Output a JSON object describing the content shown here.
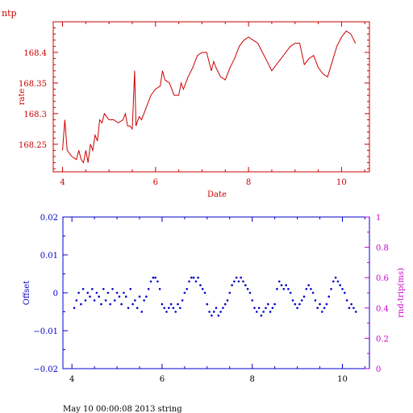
{
  "footer_text": "May 10 00:00:08 2013 string",
  "colors": {
    "top": "#cc0000",
    "blue": "#0000cc",
    "magenta": "#cc00cc",
    "black": "#000000"
  },
  "chart_data": [
    {
      "type": "line",
      "title": "ntp",
      "xlabel": "Date",
      "ylabel": "rate",
      "xlim": [
        3.8,
        10.6
      ],
      "ylim": [
        168.205,
        168.45
      ],
      "xticks": [
        4,
        6,
        8,
        10
      ],
      "yticks": [
        168.25,
        168.3,
        168.35,
        168.4
      ],
      "ytick_labels": [
        "168.25",
        "168.3",
        "168.35",
        "168.4"
      ],
      "grid": false,
      "series": [
        {
          "x": [
            4.0,
            4.05,
            4.08,
            4.1,
            4.15,
            4.2,
            4.3,
            4.35,
            4.4,
            4.45,
            4.5,
            4.55,
            4.6,
            4.65,
            4.7,
            4.75,
            4.8,
            4.85,
            4.9,
            4.95,
            5.0,
            5.1,
            5.2,
            5.3,
            5.35,
            5.4,
            5.45,
            5.5,
            5.55,
            5.58,
            5.6,
            5.65,
            5.7,
            5.75,
            5.8,
            5.9,
            6.0,
            6.1,
            6.15,
            6.2,
            6.3,
            6.4,
            6.5,
            6.55,
            6.6,
            6.7,
            6.8,
            6.9,
            7.0,
            7.1,
            7.2,
            7.25,
            7.3,
            7.4,
            7.5,
            7.6,
            7.7,
            7.8,
            7.9,
            8.0,
            8.1,
            8.2,
            8.3,
            8.4,
            8.5,
            8.6,
            8.7,
            8.8,
            8.9,
            9.0,
            9.1,
            9.2,
            9.3,
            9.4,
            9.5,
            9.6,
            9.7,
            9.8,
            9.9,
            10.0,
            10.1,
            10.2,
            10.3
          ],
          "y": [
            168.24,
            168.29,
            168.26,
            168.24,
            168.235,
            168.23,
            168.225,
            168.24,
            168.225,
            168.22,
            168.24,
            168.22,
            168.25,
            168.24,
            168.265,
            168.255,
            168.29,
            168.285,
            168.3,
            168.295,
            168.29,
            168.29,
            168.285,
            168.29,
            168.3,
            168.28,
            168.28,
            168.275,
            168.37,
            168.28,
            168.285,
            168.295,
            168.29,
            168.3,
            168.31,
            168.33,
            168.34,
            168.345,
            168.37,
            168.355,
            168.35,
            168.33,
            168.33,
            168.35,
            168.34,
            168.36,
            168.375,
            168.395,
            168.4,
            168.4,
            168.37,
            168.385,
            168.375,
            168.36,
            168.355,
            168.375,
            168.39,
            168.41,
            168.42,
            168.425,
            168.42,
            168.415,
            168.4,
            168.385,
            168.37,
            168.38,
            168.39,
            168.4,
            168.41,
            168.415,
            168.415,
            168.38,
            168.39,
            168.395,
            168.375,
            168.365,
            168.36,
            168.385,
            168.41,
            168.425,
            168.435,
            168.43,
            168.415
          ]
        }
      ]
    },
    {
      "type": "scatter",
      "xlabel": "",
      "ylabel": "Offset",
      "y2label": "rnd-trip(ms)",
      "xlim": [
        3.8,
        10.6
      ],
      "ylim": [
        -0.02,
        0.02
      ],
      "y2lim": [
        0,
        1
      ],
      "xticks": [
        4,
        6,
        8,
        10
      ],
      "yticks": [
        -0.02,
        -0.01,
        0,
        0.01,
        0.02
      ],
      "ytick_labels": [
        "−0.02",
        "−0.01",
        "0",
        "0.01",
        "0.02"
      ],
      "y2ticks": [
        0,
        0.2,
        0.4,
        0.6,
        0.8,
        1
      ],
      "y2tick_labels": [
        "0",
        "0.2",
        "0.4",
        "0.6",
        "0.8",
        "1"
      ],
      "grid": false,
      "series": [
        {
          "x": [
            4.05,
            4.1,
            4.15,
            4.2,
            4.25,
            4.3,
            4.35,
            4.4,
            4.45,
            4.5,
            4.55,
            4.6,
            4.65,
            4.7,
            4.75,
            4.8,
            4.85,
            4.9,
            4.95,
            5.0,
            5.05,
            5.1,
            5.15,
            5.2,
            5.25,
            5.3,
            5.35,
            5.4,
            5.45,
            5.5,
            5.55,
            5.6,
            5.65,
            5.7,
            5.75,
            5.8,
            5.85,
            5.9,
            5.95,
            6.0,
            6.05,
            6.1,
            6.15,
            6.2,
            6.25,
            6.3,
            6.35,
            6.4,
            6.45,
            6.5,
            6.55,
            6.6,
            6.65,
            6.7,
            6.75,
            6.8,
            6.85,
            6.9,
            6.95,
            7.0,
            7.05,
            7.1,
            7.15,
            7.2,
            7.25,
            7.3,
            7.35,
            7.4,
            7.45,
            7.5,
            7.55,
            7.6,
            7.65,
            7.7,
            7.75,
            7.8,
            7.85,
            7.9,
            7.95,
            8.0,
            8.05,
            8.1,
            8.15,
            8.2,
            8.25,
            8.3,
            8.35,
            8.4,
            8.45,
            8.5,
            8.55,
            8.6,
            8.65,
            8.7,
            8.75,
            8.8,
            8.85,
            8.9,
            8.95,
            9.0,
            9.05,
            9.1,
            9.15,
            9.2,
            9.25,
            9.3,
            9.35,
            9.4,
            9.45,
            9.5,
            9.55,
            9.6,
            9.65,
            9.7,
            9.75,
            9.8,
            9.85,
            9.9,
            9.95,
            10.0,
            10.05,
            10.1,
            10.15,
            10.2,
            10.25,
            10.3
          ],
          "y": [
            -0.004,
            -0.002,
            0.0,
            -0.003,
            0.001,
            -0.002,
            0.0,
            -0.001,
            0.001,
            -0.002,
            0.0,
            -0.001,
            -0.003,
            0.001,
            -0.002,
            0.0,
            -0.003,
            0.001,
            -0.002,
            0.0,
            -0.001,
            -0.003,
            0.0,
            -0.001,
            -0.004,
            0.001,
            -0.003,
            -0.002,
            -0.004,
            -0.001,
            -0.005,
            -0.002,
            -0.001,
            0.001,
            0.003,
            0.004,
            0.004,
            0.003,
            0.001,
            -0.003,
            -0.004,
            -0.005,
            -0.004,
            -0.003,
            -0.004,
            -0.005,
            -0.003,
            -0.004,
            -0.002,
            0.0,
            0.001,
            0.003,
            0.004,
            0.004,
            0.003,
            0.004,
            0.002,
            0.001,
            0.0,
            -0.003,
            -0.005,
            -0.006,
            -0.005,
            -0.004,
            -0.006,
            -0.005,
            -0.004,
            -0.003,
            -0.002,
            0.0,
            0.002,
            0.003,
            0.004,
            0.003,
            0.004,
            0.003,
            0.002,
            0.001,
            0.0,
            -0.002,
            -0.004,
            -0.005,
            -0.004,
            -0.006,
            -0.005,
            -0.004,
            -0.003,
            -0.005,
            -0.004,
            -0.003,
            0.001,
            0.003,
            0.002,
            0.001,
            0.002,
            0.001,
            0.0,
            -0.002,
            -0.003,
            -0.004,
            -0.003,
            -0.002,
            -0.001,
            0.001,
            0.002,
            0.001,
            0.0,
            -0.002,
            -0.004,
            -0.003,
            -0.005,
            -0.004,
            -0.003,
            -0.001,
            0.001,
            0.003,
            0.004,
            0.003,
            0.002,
            0.001,
            0.0,
            -0.002,
            -0.004,
            -0.003,
            -0.004,
            -0.005
          ]
        }
      ]
    }
  ]
}
